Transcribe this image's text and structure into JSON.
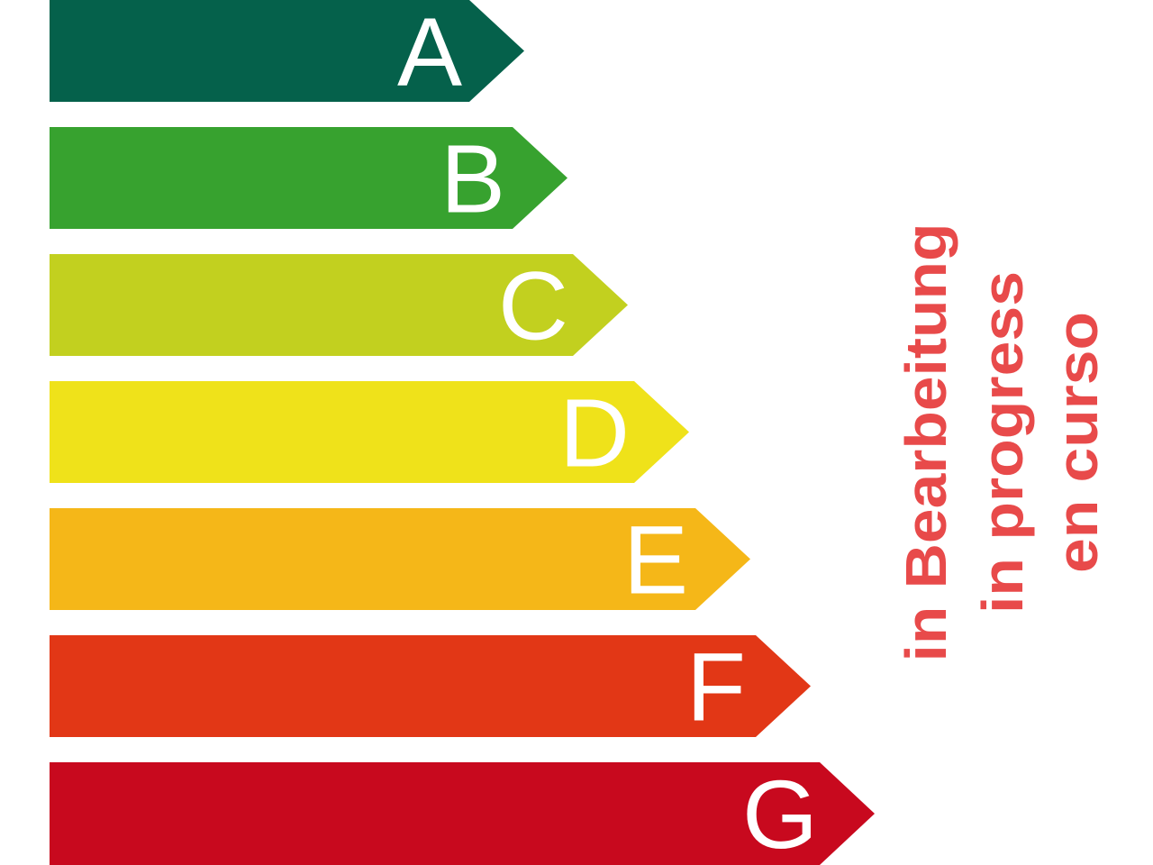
{
  "energy_classes": [
    {
      "label": "A",
      "color": "#05614b"
    },
    {
      "label": "B",
      "color": "#37a22f"
    },
    {
      "label": "C",
      "color": "#c2d01f"
    },
    {
      "label": "D",
      "color": "#efe21a"
    },
    {
      "label": "E",
      "color": "#f5b718"
    },
    {
      "label": "F",
      "color": "#e23716"
    },
    {
      "label": "G",
      "color": "#c8091e"
    }
  ],
  "status": {
    "color": "#e84a4a",
    "lines": [
      "in Bearbeitung",
      "in progress",
      "en curso"
    ]
  }
}
